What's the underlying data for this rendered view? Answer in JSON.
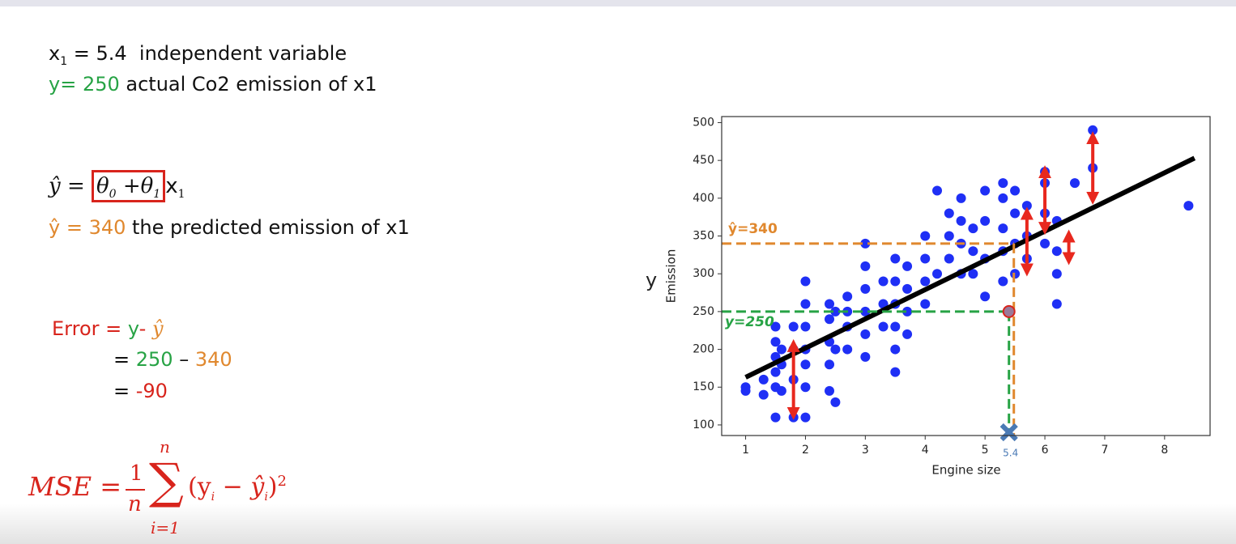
{
  "slide": {
    "line1": {
      "var": "x",
      "sub": "1",
      "rest": " = 5.4  independent variable"
    },
    "line2": {
      "highlight": "y= 250",
      "rest": " actual Co2 emission of x1"
    },
    "model": {
      "lhs": "ŷ =",
      "t0": "θ",
      "t0sub": "0",
      "t1": " +θ",
      "t1sub": "1",
      "var": "x",
      "varsub": "1"
    },
    "line4": {
      "highlight": "ŷ = 340",
      "rest": " the predicted emission of x1"
    },
    "error": {
      "label": "Error =",
      "y": "y",
      "minus": "-",
      "yhat": "ŷ",
      "eq1": "=",
      "actual": "250",
      "dash": "–",
      "predicted": "340",
      "eq2": "=",
      "result": "-90"
    },
    "mse": {
      "lhs": "MSE =",
      "num": "1",
      "den": "n",
      "sum": "∑",
      "top": "n",
      "bottom": "i=1",
      "open": "(y",
      "isub1": "i",
      "mid": " − ŷ",
      "isub2": "i",
      "close": ")",
      "power": "2"
    }
  },
  "chart_data": {
    "type": "scatter",
    "xlabel": "Engine size",
    "ylabel": "Emission",
    "side_label": "y",
    "xlim": [
      0.6,
      8.76
    ],
    "ylim": [
      86,
      508
    ],
    "xticks": [
      1,
      2,
      3,
      4,
      5,
      6,
      7,
      8
    ],
    "yticks": [
      100,
      150,
      200,
      250,
      300,
      350,
      400,
      450,
      500
    ],
    "x": [
      1,
      1,
      1.3,
      1.3,
      1.5,
      1.5,
      1.5,
      1.5,
      1.5,
      1.5,
      1.6,
      1.6,
      1.6,
      1.8,
      1.8,
      1.8,
      1.8,
      2,
      2,
      2,
      2,
      2,
      2,
      2,
      2.4,
      2.4,
      2.4,
      2.4,
      2.4,
      2.5,
      2.5,
      2.5,
      2.7,
      2.7,
      2.7,
      2.7,
      3,
      3,
      3,
      3,
      3,
      3,
      3.3,
      3.3,
      3.3,
      3.5,
      3.5,
      3.5,
      3.5,
      3.5,
      3.5,
      3.7,
      3.7,
      3.7,
      3.7,
      4,
      4,
      4,
      4,
      4.2,
      4.2,
      4.4,
      4.4,
      4.4,
      4.6,
      4.6,
      4.6,
      4.6,
      4.8,
      4.8,
      4.8,
      5,
      5,
      5,
      5,
      5.3,
      5.3,
      5.3,
      5.3,
      5.3,
      5.5,
      5.5,
      5.5,
      5.5,
      5.7,
      5.7,
      5.7,
      6,
      6,
      6,
      6,
      6.2,
      6.2,
      6.2,
      6.2,
      6.5,
      6.8,
      6.8,
      8.4
    ],
    "series": [
      {
        "color": "#1f2ff5",
        "values": [
          150,
          145,
          140,
          160,
          110,
          150,
          170,
          190,
          210,
          230,
          145,
          180,
          200,
          110,
          160,
          200,
          230,
          110,
          150,
          180,
          200,
          230,
          260,
          290,
          145,
          180,
          210,
          240,
          260,
          130,
          200,
          250,
          200,
          230,
          250,
          270,
          190,
          220,
          250,
          280,
          310,
          340,
          230,
          260,
          290,
          170,
          200,
          230,
          260,
          290,
          320,
          220,
          250,
          280,
          310,
          260,
          290,
          320,
          350,
          410,
          300,
          320,
          350,
          380,
          300,
          340,
          370,
          400,
          300,
          330,
          360,
          270,
          320,
          370,
          410,
          290,
          330,
          360,
          400,
          420,
          300,
          340,
          380,
          410,
          320,
          350,
          390,
          340,
          380,
          420,
          435,
          260,
          300,
          330,
          370,
          420,
          440,
          490,
          390
        ]
      }
    ],
    "fit_line": {
      "x": [
        1,
        8.5
      ],
      "values": [
        163,
        453
      ],
      "color": "#000000"
    },
    "highlight": {
      "x": 5.4,
      "y": 250,
      "predicted": 340,
      "actual_label": "y=250",
      "predicted_label": "ŷ=340",
      "actual_color": "#27a345",
      "predicted_color": "#e0882e",
      "marker_color": "#4a7ab5"
    },
    "residuals": {
      "color": "#e8281e",
      "x": [
        1.8,
        5.7,
        6,
        6.4,
        6.8
      ],
      "from": [
        115,
        305,
        360,
        320,
        400
      ],
      "to": [
        205,
        380,
        435,
        350,
        480
      ]
    }
  }
}
